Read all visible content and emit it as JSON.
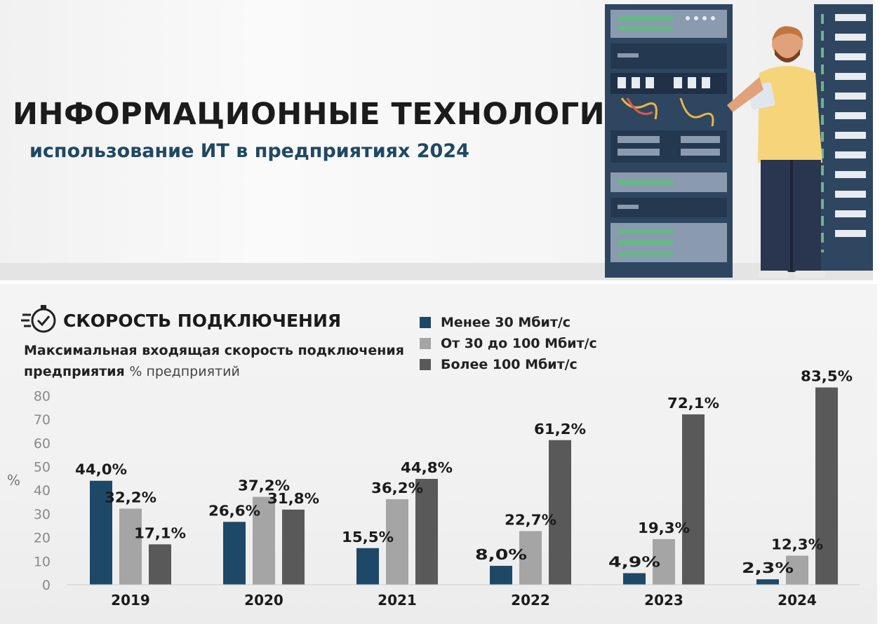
{
  "banner": {
    "title": "ИНФОРМАЦИОННЫЕ ТЕХНОЛОГИИ",
    "subtitle": "использование ИТ в предприятиях 2024",
    "illustration_icon": "server-rack-technician-icon"
  },
  "chart": {
    "icon": "stopwatch-check-icon",
    "title": "СКОРОСТЬ ПОДКЛЮЧЕНИЯ",
    "subtitle": "Максимальная входящая скорость подключения предприятия",
    "unit_note": "% предприятий",
    "y_unit": "%"
  },
  "chart_data": {
    "type": "bar",
    "title": "СКОРОСТЬ ПОДКЛЮЧЕНИЯ",
    "subtitle": "Максимальная входящая скорость подключения предприятия % предприятий",
    "xlabel": "",
    "ylabel": "%",
    "ylim": [
      0,
      80
    ],
    "yticks": [
      0,
      10,
      20,
      30,
      40,
      50,
      60,
      70,
      80
    ],
    "grid": false,
    "legend_position": "top-right",
    "categories": [
      "2019",
      "2020",
      "2021",
      "2022",
      "2023",
      "2024"
    ],
    "series": [
      {
        "name": "Менее 30 Мбит/с",
        "color": "#1e4868",
        "values": [
          44.0,
          26.6,
          15.5,
          8.0,
          4.9,
          2.3
        ],
        "labels": [
          "44,0%",
          "26,6%",
          "15,5%",
          "8,0%",
          "4,9%",
          "2,3%"
        ]
      },
      {
        "name": "От 30 до 100 Мбит/с",
        "color": "#a5a5a5",
        "values": [
          32.2,
          37.2,
          36.2,
          22.7,
          19.3,
          12.3
        ],
        "labels": [
          "32,2%",
          "37,2%",
          "36,2%",
          "22,7%",
          "19,3%",
          "12,3%"
        ]
      },
      {
        "name": "Более 100 Мбит/с",
        "color": "#595959",
        "values": [
          17.1,
          31.8,
          44.8,
          61.2,
          72.1,
          83.5
        ],
        "labels": [
          "17,1%",
          "31,8%",
          "44,8%",
          "61,2%",
          "72,1%",
          "83,5%"
        ]
      }
    ]
  }
}
